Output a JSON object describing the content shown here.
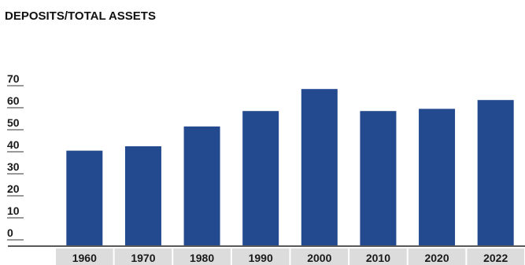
{
  "chart_data": {
    "type": "bar",
    "title": "DEPOSITS/TOTAL ASSETS",
    "xlabel": "",
    "ylabel": "",
    "categories": [
      "1960",
      "1970",
      "1980",
      "1990",
      "2000",
      "2010",
      "2020",
      "2022"
    ],
    "values": [
      43,
      45,
      54,
      61,
      71,
      61,
      62,
      66
    ],
    "yticks": [
      "0",
      "10",
      "20",
      "30",
      "40",
      "50",
      "60",
      "70"
    ],
    "ylim": [
      0,
      77
    ],
    "grid": false,
    "legend": "none",
    "colors": {
      "bar": "#234a8f",
      "category_band": "#dcdcdc",
      "baseline": "#222222",
      "tick_mark": "#333333"
    }
  }
}
